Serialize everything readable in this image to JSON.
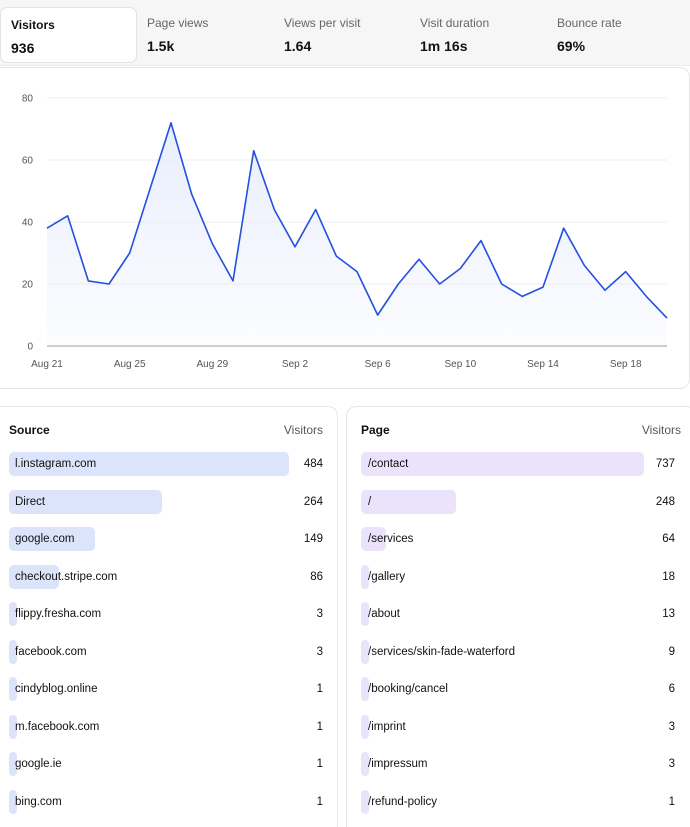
{
  "metrics": [
    {
      "label": "Visitors",
      "value": "936",
      "active": true
    },
    {
      "label": "Page views",
      "value": "1.5k"
    },
    {
      "label": "Views per visit",
      "value": "1.64"
    },
    {
      "label": "Visit duration",
      "value": "1m 16s"
    },
    {
      "label": "Bounce rate",
      "value": "69%"
    }
  ],
  "chart_data": {
    "type": "area",
    "x": [
      "Aug 21",
      "Aug 22",
      "Aug 23",
      "Aug 24",
      "Aug 25",
      "Aug 26",
      "Aug 27",
      "Aug 28",
      "Aug 29",
      "Aug 30",
      "Aug 31",
      "Sep 1",
      "Sep 2",
      "Sep 3",
      "Sep 4",
      "Sep 5",
      "Sep 6",
      "Sep 7",
      "Sep 8",
      "Sep 9",
      "Sep 10",
      "Sep 11",
      "Sep 12",
      "Sep 13",
      "Sep 14",
      "Sep 15",
      "Sep 16",
      "Sep 17",
      "Sep 18",
      "Sep 19",
      "Sep 20"
    ],
    "series": [
      {
        "values": [
          38,
          42,
          21,
          20,
          30,
          51,
          72,
          49,
          33,
          21,
          63,
          44,
          32,
          44,
          29,
          24,
          10,
          20,
          28,
          20,
          25,
          34,
          20,
          16,
          19,
          38,
          26,
          18,
          24,
          16,
          9
        ]
      }
    ],
    "x_ticks": [
      "Aug 21",
      "Aug 25",
      "Aug 29",
      "Sep 2",
      "Sep 6",
      "Sep 10",
      "Sep 14",
      "Sep 18"
    ],
    "y_ticks": [
      0,
      20,
      40,
      60,
      80
    ],
    "ylim": [
      0,
      80
    ],
    "grid": true,
    "line_color": "#2450e0",
    "fill_color": "#e9eefc"
  },
  "sources": {
    "header_label": "Source",
    "header_value": "Visitors",
    "bar_color": "#dbe4fb",
    "items": [
      {
        "label": "l.instagram.com",
        "value": "484",
        "share": 1.0
      },
      {
        "label": "Direct",
        "value": "264",
        "share": 0.545
      },
      {
        "label": "google.com",
        "value": "149",
        "share": 0.308
      },
      {
        "label": "checkout.stripe.com",
        "value": "86",
        "share": 0.178
      },
      {
        "label": "flippy.fresha.com",
        "value": "3",
        "share": 0.006
      },
      {
        "label": "facebook.com",
        "value": "3",
        "share": 0.006
      },
      {
        "label": "cindyblog.online",
        "value": "1",
        "share": 0.002
      },
      {
        "label": "m.facebook.com",
        "value": "1",
        "share": 0.002
      },
      {
        "label": "google.ie",
        "value": "1",
        "share": 0.002
      },
      {
        "label": "bing.com",
        "value": "1",
        "share": 0.002
      }
    ]
  },
  "pages": {
    "header_label": "Page",
    "header_value": "Visitors",
    "bar_color": "#ebe2fb",
    "items": [
      {
        "label": "/contact",
        "value": "737",
        "share": 1.0
      },
      {
        "label": "/",
        "value": "248",
        "share": 0.336
      },
      {
        "label": "/services",
        "value": "64",
        "share": 0.087
      },
      {
        "label": "/gallery",
        "value": "18",
        "share": 0.024
      },
      {
        "label": "/about",
        "value": "13",
        "share": 0.018
      },
      {
        "label": "/services/skin-fade-waterford",
        "value": "9",
        "share": 0.012
      },
      {
        "label": "/booking/cancel",
        "value": "6",
        "share": 0.008
      },
      {
        "label": "/imprint",
        "value": "3",
        "share": 0.004
      },
      {
        "label": "/impressum",
        "value": "3",
        "share": 0.004
      },
      {
        "label": "/refund-policy",
        "value": "1",
        "share": 0.001
      }
    ]
  }
}
